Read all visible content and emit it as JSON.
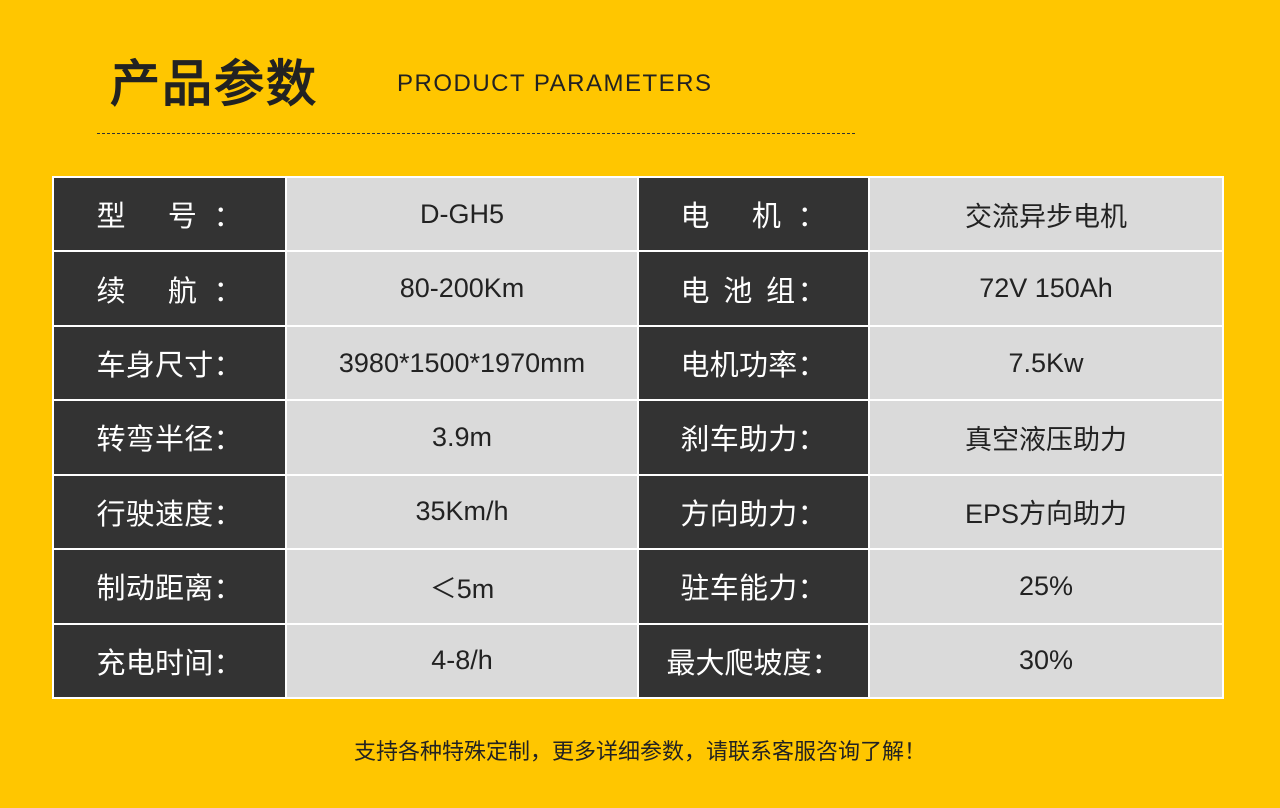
{
  "header": {
    "title": "产品参数",
    "subtitle": "PRODUCT PARAMETERS"
  },
  "colors": {
    "background": "#FFC600",
    "label_cell": "#333333",
    "value_cell": "#DADADA"
  },
  "rows": [
    {
      "k1": "型 号：",
      "v1": "D-GH5",
      "k2": "电 机：",
      "v2": "交流异步电机"
    },
    {
      "k1": "续 航：",
      "v1": "80-200Km",
      "k2": "电 池 组：",
      "v2": "72V 150Ah"
    },
    {
      "k1": "车身尺寸：",
      "v1": "3980*1500*1970mm",
      "k2": "电机功率：",
      "v2": "7.5Kw"
    },
    {
      "k1": "转弯半径：",
      "v1": "3.9m",
      "k2": "刹车助力：",
      "v2": "真空液压助力"
    },
    {
      "k1": "行驶速度：",
      "v1": "35Km/h",
      "k2": "方向助力：",
      "v2": "EPS方向助力"
    },
    {
      "k1": "制动距离：",
      "v1": "＜5m",
      "k2": "驻车能力：",
      "v2": "25%"
    },
    {
      "k1": "充电时间：",
      "v1": "4-8/h",
      "k2": "最大爬坡度：",
      "v2": "30%"
    }
  ],
  "footer": {
    "text": "支持各种特殊定制，更多详细参数，请联系客服咨询了解！"
  }
}
